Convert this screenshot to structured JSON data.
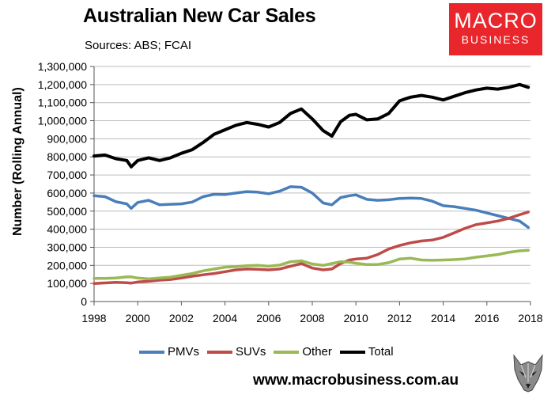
{
  "header": {
    "title": "Australian New Car Sales",
    "subtitle": "Sources: ABS; FCAI"
  },
  "logo": {
    "line1": "MACRO",
    "line2": "BUSINESS",
    "color": "#e8262b"
  },
  "footer": {
    "url": "www.macrobusiness.com.au"
  },
  "chart_data": {
    "type": "line",
    "title": "Australian New Car Sales",
    "ylabel": "Number (Rolling Annual)",
    "xlabel": "",
    "xlim": [
      1998,
      2018
    ],
    "ylim": [
      0,
      1300000
    ],
    "x_ticks": [
      "1998",
      "2000",
      "2002",
      "2004",
      "2006",
      "2008",
      "2010",
      "2012",
      "2014",
      "2016",
      "2018"
    ],
    "y_ticks": [
      "0",
      "100,000",
      "200,000",
      "300,000",
      "400,000",
      "500,000",
      "600,000",
      "700,000",
      "800,000",
      "900,000",
      "1,000,000",
      "1,100,000",
      "1,200,000",
      "1,300,000"
    ],
    "grid": true,
    "legend_position": "bottom",
    "x": [
      1998,
      1998.5,
      1999,
      1999.5,
      1999.7,
      2000,
      2000.5,
      2001,
      2001.5,
      2002,
      2002.5,
      2003,
      2003.5,
      2004,
      2004.5,
      2005,
      2005.5,
      2006,
      2006.5,
      2007,
      2007.5,
      2008,
      2008.5,
      2008.9,
      2009.3,
      2009.7,
      2010,
      2010.5,
      2011,
      2011.5,
      2012,
      2012.5,
      2013,
      2013.5,
      2014,
      2014.5,
      2015,
      2015.5,
      2016,
      2016.5,
      2017,
      2017.5,
      2017.9
    ],
    "series": [
      {
        "name": "PMVs",
        "color": "#4a7ebb",
        "values": [
          585000,
          580000,
          552000,
          540000,
          515000,
          548000,
          560000,
          535000,
          538000,
          540000,
          550000,
          580000,
          593000,
          592000,
          600000,
          608000,
          605000,
          596000,
          610000,
          635000,
          632000,
          600000,
          545000,
          535000,
          575000,
          585000,
          590000,
          565000,
          560000,
          563000,
          570000,
          572000,
          570000,
          555000,
          530000,
          525000,
          515000,
          505000,
          490000,
          475000,
          460000,
          445000,
          410000
        ]
      },
      {
        "name": "SUVs",
        "color": "#be4b48",
        "values": [
          100000,
          103000,
          106000,
          104000,
          102000,
          108000,
          112000,
          118000,
          122000,
          130000,
          140000,
          148000,
          155000,
          165000,
          175000,
          180000,
          178000,
          175000,
          180000,
          195000,
          210000,
          185000,
          175000,
          180000,
          210000,
          230000,
          235000,
          240000,
          260000,
          290000,
          310000,
          325000,
          335000,
          340000,
          355000,
          380000,
          405000,
          425000,
          435000,
          445000,
          460000,
          480000,
          495000
        ]
      },
      {
        "name": "Other",
        "color": "#98b954",
        "values": [
          128000,
          128000,
          130000,
          136000,
          136000,
          130000,
          125000,
          130000,
          135000,
          145000,
          155000,
          170000,
          180000,
          190000,
          193000,
          198000,
          200000,
          195000,
          202000,
          220000,
          225000,
          208000,
          200000,
          210000,
          220000,
          218000,
          212000,
          205000,
          205000,
          215000,
          235000,
          240000,
          230000,
          228000,
          230000,
          232000,
          236000,
          245000,
          252000,
          260000,
          272000,
          280000,
          283000
        ]
      },
      {
        "name": "Total",
        "color": "#000000",
        "values": [
          805000,
          810000,
          790000,
          780000,
          745000,
          780000,
          795000,
          780000,
          795000,
          820000,
          840000,
          880000,
          925000,
          950000,
          975000,
          990000,
          980000,
          965000,
          990000,
          1040000,
          1065000,
          1010000,
          945000,
          915000,
          995000,
          1030000,
          1035000,
          1005000,
          1010000,
          1040000,
          1110000,
          1130000,
          1140000,
          1130000,
          1115000,
          1135000,
          1155000,
          1170000,
          1180000,
          1175000,
          1185000,
          1200000,
          1185000
        ]
      }
    ]
  }
}
